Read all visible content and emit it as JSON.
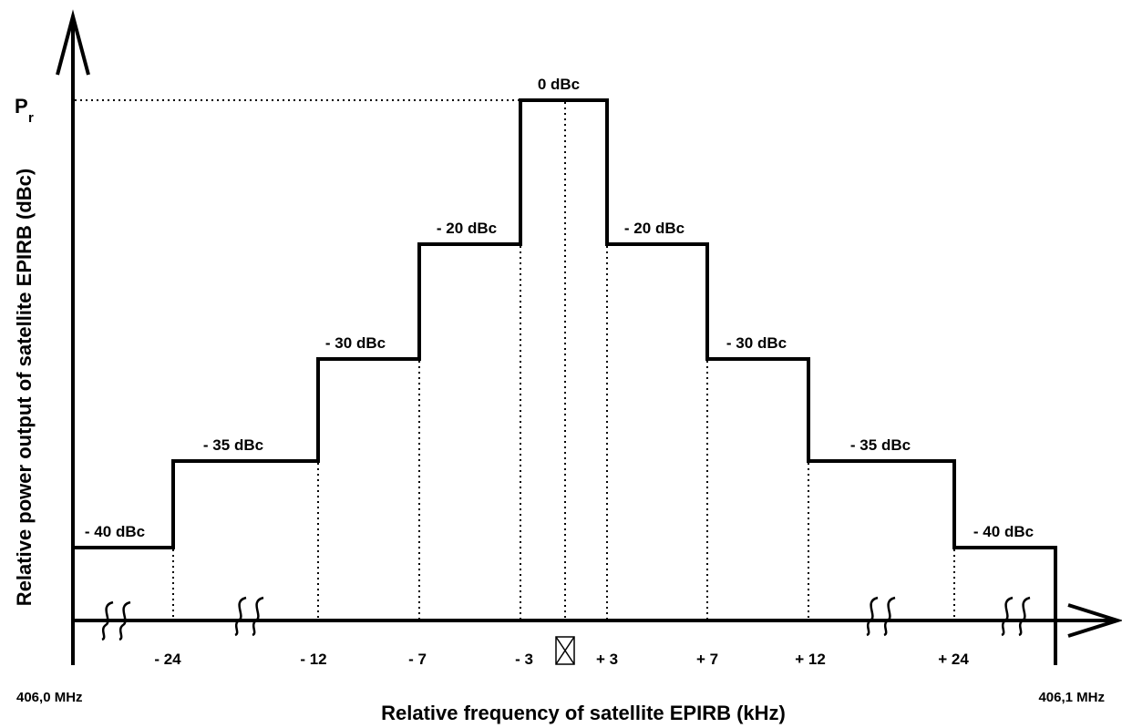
{
  "diagram": {
    "y_axis_symbol": "P",
    "y_axis_symbol_subscript": "r",
    "y_axis_title": "Relative power output of satellite EPIRB (dBc)",
    "x_axis_title": "Relative frequency of satellite EPIRB (kHz)",
    "freq_start_label": "406,0 MHz",
    "freq_end_label": "406,1 MHz",
    "levels": [
      {
        "label": "- 40 dBc"
      },
      {
        "label": "- 35 dBc"
      },
      {
        "label": "- 30 dBc"
      },
      {
        "label": "- 20 dBc"
      },
      {
        "label": "0 dBc"
      },
      {
        "label": "- 20 dBc"
      },
      {
        "label": "- 30 dBc"
      },
      {
        "label": "- 35 dBc"
      },
      {
        "label": "- 40 dBc"
      }
    ],
    "ticks": [
      {
        "label": "- 24"
      },
      {
        "label": "- 12"
      },
      {
        "label": "- 7"
      },
      {
        "label": "- 3"
      },
      {
        "label": "+ 3"
      },
      {
        "label": "+ 7"
      },
      {
        "label": "+ 12"
      },
      {
        "label": "+ 24"
      }
    ],
    "colors": {
      "line": "#000000",
      "background": "#ffffff"
    },
    "center_marker_icon": "crossed-box-icon",
    "axis_break_icon": "axis-break-icon"
  }
}
